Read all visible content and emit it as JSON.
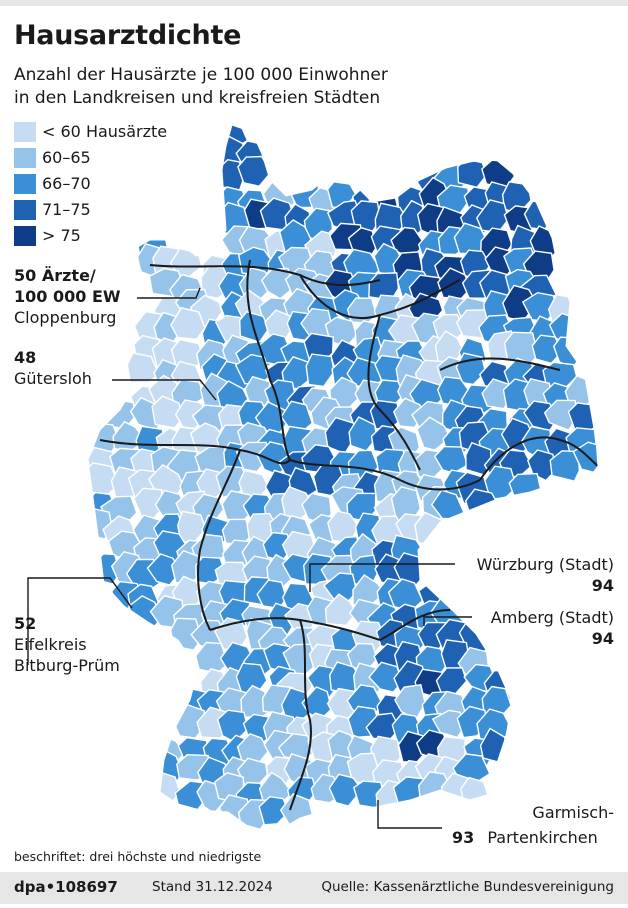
{
  "title": "Hausarztdichte",
  "subtitle": [
    "Anzahl der Hausärzte je 100 000 Einwohner",
    "in den Landkreisen und kreisfreien Städten"
  ],
  "legend": [
    {
      "label": "< 60 Hausärzte",
      "color": "#c6dcf2"
    },
    {
      "label": "60–65",
      "color": "#96c3ea"
    },
    {
      "label": "66–70",
      "color": "#3a8fd6"
    },
    {
      "label": "71–75",
      "color": "#1f62b3"
    },
    {
      "label": "> 75",
      "color": "#0f3c86"
    }
  ],
  "annotations": {
    "cloppenburg": {
      "value_line1": "50 Ärzte/",
      "value_line2": "100 000 EW",
      "name": "Cloppenburg"
    },
    "guetersloh": {
      "value": "48",
      "name": "Gütersloh"
    },
    "eifelkreis": {
      "value": "52",
      "name_line1": "Eifelkreis",
      "name_line2": "Bitburg-Prüm"
    },
    "wuerzburg": {
      "name": "Würzburg (Stadt)",
      "value": "94"
    },
    "amberg": {
      "name": "Amberg (Stadt)",
      "value": "94"
    },
    "garmisch": {
      "name_line1": "Garmisch-",
      "name_line2": "Partenkirchen",
      "value": "93"
    }
  },
  "footnote": "beschriftet: drei höchste und niedrigste",
  "footer": {
    "agency": "dpa•108697",
    "date": "Stand 31.12.2024",
    "source": "Quelle: Kassenärztliche Bundesvereinigung"
  },
  "map_style": {
    "border_color": "#ffffff",
    "state_border_color": "#1a1a1a",
    "leader_color": "#1a1a1a"
  }
}
